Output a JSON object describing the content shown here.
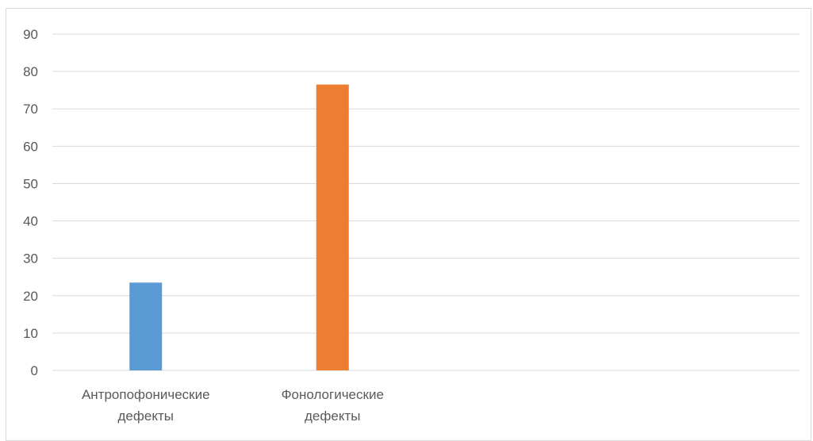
{
  "chart_data": {
    "type": "bar",
    "categories": [
      [
        "Антропофонические",
        "дефекты"
      ],
      [
        "Фонологические",
        "дефекты"
      ],
      [
        "",
        ""
      ],
      [
        "",
        ""
      ]
    ],
    "values": [
      23.5,
      76.5,
      null,
      null
    ],
    "colors": [
      "#5b9bd5",
      "#ed7d31"
    ],
    "ylim": [
      0,
      90
    ],
    "yticks": [
      0,
      10,
      20,
      30,
      40,
      50,
      60,
      70,
      80,
      90
    ],
    "grid": true,
    "legend": "none",
    "gridline_color": "#d9d9d9"
  }
}
